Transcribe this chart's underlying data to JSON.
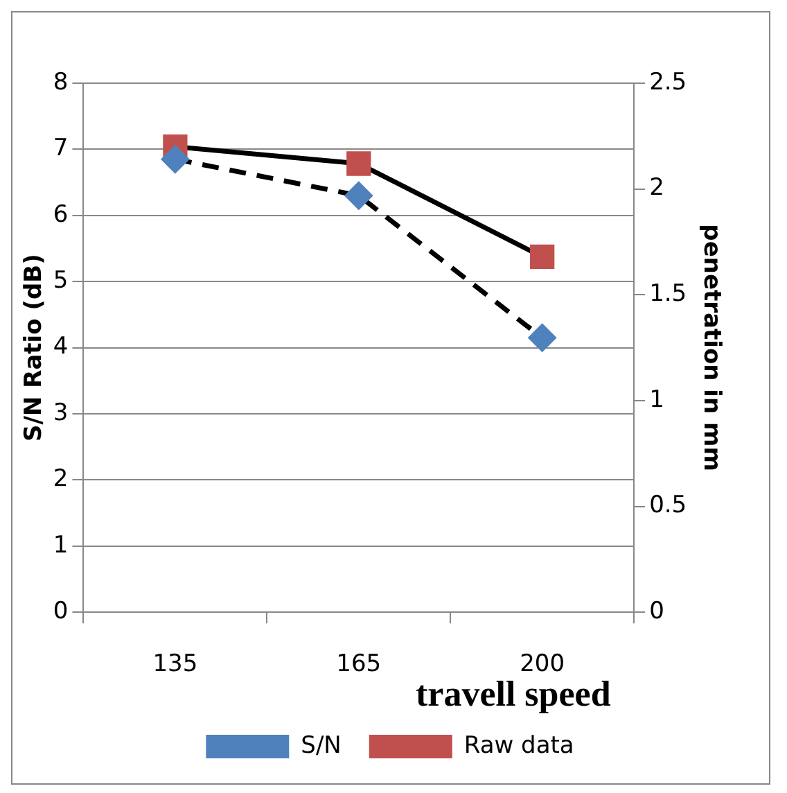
{
  "chart_data": {
    "type": "line",
    "xlabel": "travell speed",
    "ylabel": "S/N Ratio (dB)",
    "y2label": "penetration in mm",
    "categories": [
      "135",
      "165",
      "200"
    ],
    "series": [
      {
        "name": "S/N",
        "color": "#4f81bd",
        "values": [
          6.85,
          6.3,
          4.15
        ],
        "marker": "diamond",
        "line_style": "dashed"
      },
      {
        "name": "Raw data",
        "color": "#c0504d",
        "values": [
          2.2,
          2.12,
          1.68
        ],
        "axis": "y2",
        "marker": "square",
        "line_style": "solid"
      }
    ],
    "ylim": [
      0,
      8
    ],
    "yticks": [
      0,
      1,
      2,
      3,
      4,
      5,
      6,
      7,
      8
    ],
    "y2lim": [
      0,
      2.5
    ],
    "y2ticks": [
      0,
      0.5,
      1,
      1.5,
      2,
      2.5
    ],
    "grid": "y",
    "legend": "bottom"
  }
}
